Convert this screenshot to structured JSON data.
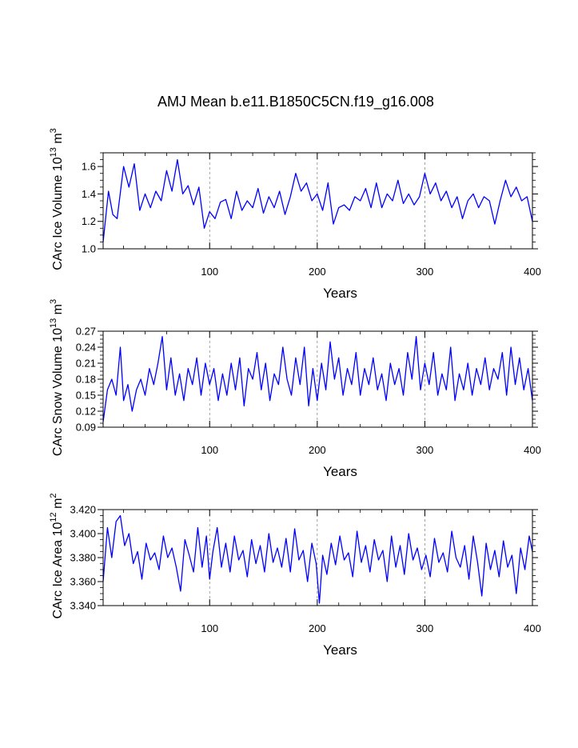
{
  "figure_title": "AMJ Mean b.e11.B1850C5CN.f19_g16.008",
  "colors": {
    "series": "#0000ff",
    "axes": "#000000",
    "grid": "#888888"
  },
  "chart_data": [
    {
      "type": "line",
      "title": "AMJ Mean b.e11.B1850C5CN.f19_g16.008",
      "xlabel": "Years",
      "ylabel": {
        "prefix": "CArc Ice Volume 10",
        "exp": "13",
        "unit": " m",
        "unit_exp": "3"
      },
      "xlim": [
        1,
        400
      ],
      "ylim": [
        1.0,
        1.7
      ],
      "xticks": [
        100,
        200,
        300,
        400
      ],
      "xtick_labels": [
        "100",
        "200",
        "300",
        "400"
      ],
      "yticks": [
        1.0,
        1.2,
        1.4,
        1.6
      ],
      "ytick_labels": [
        "1.0",
        "1.2",
        "1.4",
        "1.6"
      ],
      "vertical_reference_lines": [
        100,
        200,
        300
      ],
      "x": [
        1,
        6,
        10,
        14,
        20,
        25,
        30,
        35,
        40,
        45,
        50,
        55,
        60,
        65,
        70,
        75,
        80,
        85,
        90,
        95,
        100,
        105,
        110,
        115,
        120,
        125,
        130,
        135,
        140,
        145,
        150,
        155,
        160,
        165,
        170,
        175,
        180,
        185,
        190,
        195,
        200,
        205,
        210,
        215,
        220,
        225,
        230,
        235,
        240,
        245,
        250,
        255,
        260,
        265,
        270,
        275,
        280,
        285,
        290,
        295,
        300,
        305,
        310,
        315,
        320,
        325,
        330,
        335,
        340,
        345,
        350,
        355,
        360,
        365,
        370,
        375,
        380,
        385,
        390,
        395,
        400
      ],
      "y": [
        1.05,
        1.42,
        1.25,
        1.22,
        1.6,
        1.45,
        1.62,
        1.28,
        1.4,
        1.3,
        1.42,
        1.35,
        1.57,
        1.42,
        1.65,
        1.4,
        1.46,
        1.32,
        1.45,
        1.15,
        1.27,
        1.22,
        1.34,
        1.36,
        1.22,
        1.42,
        1.28,
        1.35,
        1.3,
        1.44,
        1.26,
        1.38,
        1.3,
        1.42,
        1.25,
        1.38,
        1.55,
        1.42,
        1.48,
        1.35,
        1.4,
        1.28,
        1.48,
        1.18,
        1.3,
        1.32,
        1.28,
        1.38,
        1.35,
        1.44,
        1.3,
        1.48,
        1.3,
        1.4,
        1.35,
        1.5,
        1.33,
        1.4,
        1.32,
        1.38,
        1.55,
        1.4,
        1.48,
        1.35,
        1.42,
        1.3,
        1.38,
        1.22,
        1.35,
        1.4,
        1.3,
        1.38,
        1.35,
        1.18,
        1.35,
        1.5,
        1.38,
        1.45,
        1.35,
        1.38,
        1.2
      ]
    },
    {
      "type": "line",
      "xlabel": "Years",
      "ylabel": {
        "prefix": "CArc Snow Volume 10",
        "exp": "13",
        "unit": " m",
        "unit_exp": "3"
      },
      "xlim": [
        1,
        400
      ],
      "ylim": [
        0.09,
        0.27
      ],
      "xticks": [
        100,
        200,
        300,
        400
      ],
      "xtick_labels": [
        "100",
        "200",
        "300",
        "400"
      ],
      "yticks": [
        0.09,
        0.12,
        0.15,
        0.18,
        0.21,
        0.24,
        0.27
      ],
      "ytick_labels": [
        "0.09",
        "0.12",
        "0.15",
        "0.18",
        "0.21",
        "0.24",
        "0.27"
      ],
      "vertical_reference_lines": [
        100,
        200,
        300
      ],
      "x": [
        1,
        5,
        9,
        13,
        17,
        20,
        24,
        28,
        32,
        36,
        40,
        44,
        48,
        52,
        56,
        60,
        64,
        68,
        72,
        76,
        80,
        84,
        88,
        92,
        96,
        100,
        104,
        108,
        112,
        116,
        120,
        124,
        128,
        132,
        136,
        140,
        144,
        148,
        152,
        156,
        160,
        164,
        168,
        172,
        176,
        180,
        184,
        188,
        192,
        196,
        200,
        204,
        208,
        212,
        216,
        220,
        224,
        228,
        232,
        236,
        240,
        244,
        248,
        252,
        256,
        260,
        264,
        268,
        272,
        276,
        280,
        284,
        288,
        292,
        296,
        300,
        304,
        308,
        312,
        316,
        320,
        324,
        328,
        332,
        336,
        340,
        344,
        348,
        352,
        356,
        360,
        364,
        368,
        372,
        376,
        380,
        384,
        388,
        392,
        396,
        400
      ],
      "y": [
        0.1,
        0.16,
        0.18,
        0.15,
        0.24,
        0.14,
        0.17,
        0.12,
        0.16,
        0.18,
        0.15,
        0.2,
        0.17,
        0.21,
        0.26,
        0.16,
        0.22,
        0.15,
        0.19,
        0.14,
        0.2,
        0.17,
        0.22,
        0.15,
        0.21,
        0.17,
        0.2,
        0.14,
        0.19,
        0.15,
        0.21,
        0.16,
        0.22,
        0.13,
        0.2,
        0.18,
        0.23,
        0.16,
        0.21,
        0.14,
        0.19,
        0.17,
        0.24,
        0.18,
        0.15,
        0.22,
        0.17,
        0.24,
        0.13,
        0.2,
        0.14,
        0.21,
        0.16,
        0.25,
        0.18,
        0.22,
        0.15,
        0.2,
        0.17,
        0.23,
        0.15,
        0.2,
        0.17,
        0.22,
        0.16,
        0.19,
        0.14,
        0.21,
        0.17,
        0.2,
        0.15,
        0.23,
        0.18,
        0.26,
        0.16,
        0.21,
        0.17,
        0.23,
        0.15,
        0.19,
        0.16,
        0.24,
        0.14,
        0.19,
        0.16,
        0.21,
        0.15,
        0.2,
        0.17,
        0.22,
        0.16,
        0.2,
        0.18,
        0.23,
        0.15,
        0.24,
        0.17,
        0.22,
        0.16,
        0.2,
        0.14
      ]
    },
    {
      "type": "line",
      "xlabel": "Years",
      "ylabel": {
        "prefix": "CArc Ice Area 10",
        "exp": "12",
        "unit": " m",
        "unit_exp": "2"
      },
      "xlim": [
        1,
        400
      ],
      "ylim": [
        3.34,
        3.42
      ],
      "xticks": [
        100,
        200,
        300,
        400
      ],
      "xtick_labels": [
        "100",
        "200",
        "300",
        "400"
      ],
      "yticks": [
        3.34,
        3.36,
        3.38,
        3.4,
        3.42
      ],
      "ytick_labels": [
        "3.340",
        "3.360",
        "3.380",
        "3.400",
        "3.420"
      ],
      "vertical_reference_lines": [
        100,
        200,
        300
      ],
      "x": [
        1,
        5,
        9,
        13,
        17,
        21,
        25,
        29,
        33,
        37,
        41,
        45,
        49,
        53,
        57,
        61,
        65,
        69,
        73,
        77,
        81,
        85,
        89,
        93,
        97,
        100,
        103,
        107,
        111,
        115,
        119,
        123,
        127,
        131,
        135,
        139,
        143,
        147,
        151,
        155,
        159,
        163,
        167,
        171,
        175,
        179,
        183,
        187,
        191,
        195,
        199,
        202,
        205,
        209,
        213,
        217,
        221,
        225,
        229,
        233,
        237,
        241,
        245,
        249,
        253,
        257,
        261,
        265,
        269,
        273,
        277,
        281,
        285,
        289,
        293,
        297,
        301,
        305,
        309,
        313,
        317,
        321,
        325,
        329,
        333,
        337,
        341,
        345,
        349,
        353,
        357,
        361,
        365,
        369,
        373,
        377,
        381,
        385,
        389,
        393,
        397,
        400
      ],
      "y": [
        3.36,
        3.405,
        3.38,
        3.41,
        3.415,
        3.39,
        3.4,
        3.375,
        3.385,
        3.362,
        3.392,
        3.378,
        3.384,
        3.37,
        3.398,
        3.38,
        3.388,
        3.372,
        3.352,
        3.395,
        3.382,
        3.368,
        3.405,
        3.372,
        3.398,
        3.362,
        3.385,
        3.405,
        3.372,
        3.392,
        3.368,
        3.398,
        3.378,
        3.386,
        3.364,
        3.395,
        3.375,
        3.39,
        3.368,
        3.4,
        3.376,
        3.388,
        3.372,
        3.396,
        3.368,
        3.404,
        3.378,
        3.386,
        3.36,
        3.392,
        3.375,
        3.342,
        3.382,
        3.366,
        3.392,
        3.374,
        3.398,
        3.378,
        3.384,
        3.364,
        3.402,
        3.376,
        3.39,
        3.368,
        3.395,
        3.378,
        3.386,
        3.36,
        3.398,
        3.372,
        3.39,
        3.366,
        3.4,
        3.378,
        3.388,
        3.37,
        3.382,
        3.364,
        3.396,
        3.376,
        3.384,
        3.368,
        3.402,
        3.38,
        3.372,
        3.39,
        3.362,
        3.398,
        3.376,
        3.348,
        3.392,
        3.37,
        3.386,
        3.364,
        3.394,
        3.372,
        3.382,
        3.35,
        3.388,
        3.37,
        3.398,
        3.385
      ]
    }
  ]
}
